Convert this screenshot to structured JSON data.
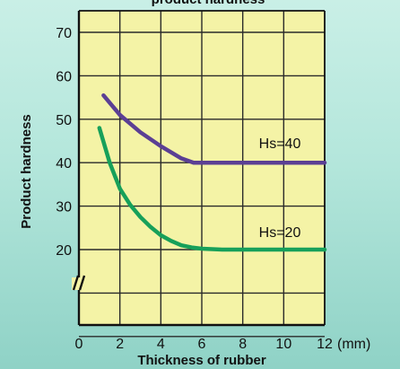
{
  "chart_data": {
    "type": "line",
    "title": "product hardness",
    "xlabel": "Thickness of rubber",
    "ylabel": "Product hardness",
    "x_unit": "(mm)",
    "xlim": [
      0,
      12
    ],
    "ylim": [
      10,
      70
    ],
    "x_ticks": [
      0,
      2,
      4,
      6,
      8,
      10,
      12
    ],
    "y_ticks": [
      20,
      30,
      40,
      50,
      60,
      70
    ],
    "axis_break_symbol": "//",
    "grid": true,
    "colors": {
      "grid": "#2a2a2a",
      "plot_background": "#f4f3a6"
    },
    "series": [
      {
        "name": "Hs=40",
        "color": "#5b3f94",
        "x": [
          1.2,
          2,
          3,
          4,
          5,
          5.6,
          6,
          7,
          8,
          9,
          10,
          11,
          12
        ],
        "y": [
          55.5,
          51,
          47,
          43.8,
          41,
          40,
          40,
          40,
          40,
          40,
          40,
          40,
          40
        ]
      },
      {
        "name": "Hs=20",
        "color": "#17a05a",
        "x": [
          1,
          1.5,
          2,
          2.5,
          3,
          3.5,
          4,
          4.5,
          5,
          5.5,
          6,
          7,
          8,
          9,
          10,
          11,
          12
        ],
        "y": [
          48,
          40,
          34,
          30.3,
          27.5,
          25.2,
          23.3,
          22,
          21,
          20.5,
          20.2,
          20,
          20,
          20,
          20,
          20,
          20
        ]
      }
    ]
  }
}
